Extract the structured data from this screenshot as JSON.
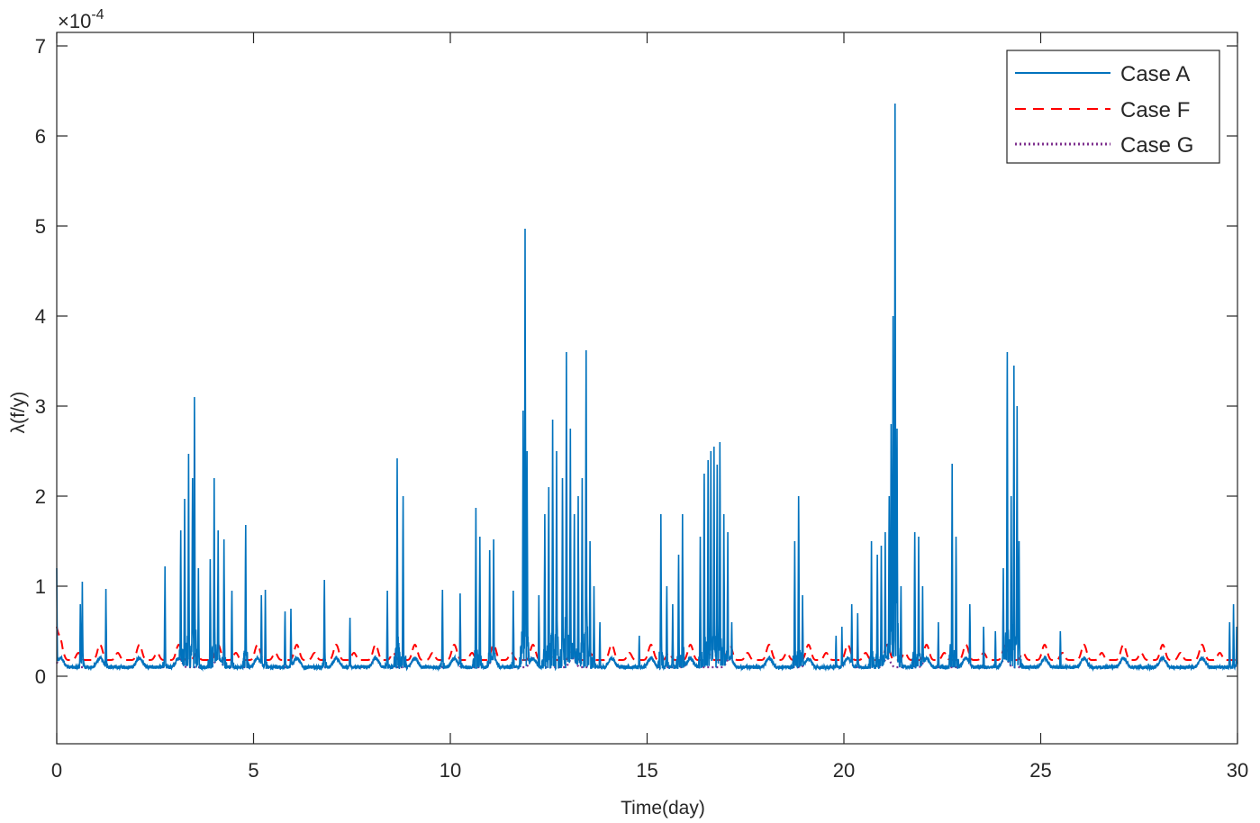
{
  "chart_data": {
    "type": "line",
    "title": "",
    "xlabel": "Time(day)",
    "ylabel": "λ(f/y)",
    "y_exponent": {
      "base": "×10",
      "power": "-4"
    },
    "xlim": [
      0,
      30
    ],
    "ylim": [
      -0.75,
      7.15
    ],
    "xticks": [
      0,
      5,
      10,
      15,
      20,
      25,
      30
    ],
    "xtick_labels": [
      "0",
      "5",
      "10",
      "15",
      "20",
      "25",
      "30"
    ],
    "yticks": [
      0,
      1,
      2,
      3,
      4,
      5,
      6,
      7
    ],
    "ytick_labels": [
      "0",
      "1",
      "2",
      "3",
      "4",
      "5",
      "6",
      "7"
    ],
    "grid": false,
    "legend": {
      "placement": "top-right",
      "entries": [
        "Case A",
        "Case F",
        "Case G"
      ]
    },
    "series": [
      {
        "name": "Case A",
        "color": "#0072BD",
        "style": "solid",
        "baseline": 0.15,
        "peaks": [
          [
            0.0,
            1.2
          ],
          [
            0.6,
            0.8
          ],
          [
            0.65,
            1.05
          ],
          [
            1.25,
            0.97
          ],
          [
            2.75,
            1.22
          ],
          [
            3.15,
            1.62
          ],
          [
            3.25,
            1.97
          ],
          [
            3.35,
            2.47
          ],
          [
            3.45,
            2.2
          ],
          [
            3.5,
            3.1
          ],
          [
            3.6,
            1.2
          ],
          [
            3.9,
            1.3
          ],
          [
            4.0,
            2.2
          ],
          [
            4.1,
            1.62
          ],
          [
            4.25,
            1.52
          ],
          [
            4.45,
            0.95
          ],
          [
            4.8,
            1.68
          ],
          [
            5.2,
            0.9
          ],
          [
            5.3,
            0.96
          ],
          [
            5.8,
            0.72
          ],
          [
            5.95,
            0.75
          ],
          [
            6.8,
            1.07
          ],
          [
            7.45,
            0.65
          ],
          [
            8.4,
            0.95
          ],
          [
            8.65,
            2.42
          ],
          [
            8.8,
            2.0
          ],
          [
            9.8,
            0.96
          ],
          [
            10.25,
            0.92
          ],
          [
            10.65,
            1.87
          ],
          [
            10.75,
            1.55
          ],
          [
            11.0,
            1.4
          ],
          [
            11.1,
            1.52
          ],
          [
            11.6,
            0.95
          ],
          [
            11.85,
            2.95
          ],
          [
            11.9,
            4.97
          ],
          [
            11.95,
            2.5
          ],
          [
            12.25,
            0.9
          ],
          [
            12.4,
            1.8
          ],
          [
            12.5,
            2.1
          ],
          [
            12.6,
            2.85
          ],
          [
            12.7,
            2.5
          ],
          [
            12.85,
            2.2
          ],
          [
            12.95,
            3.6
          ],
          [
            13.05,
            2.75
          ],
          [
            13.15,
            1.8
          ],
          [
            13.25,
            2.0
          ],
          [
            13.35,
            2.2
          ],
          [
            13.45,
            3.62
          ],
          [
            13.55,
            1.5
          ],
          [
            13.65,
            1.0
          ],
          [
            13.8,
            0.6
          ],
          [
            14.8,
            0.45
          ],
          [
            15.35,
            1.8
          ],
          [
            15.5,
            1.0
          ],
          [
            15.65,
            0.8
          ],
          [
            15.8,
            1.35
          ],
          [
            15.9,
            1.8
          ],
          [
            16.35,
            1.55
          ],
          [
            16.45,
            2.25
          ],
          [
            16.55,
            2.4
          ],
          [
            16.62,
            2.5
          ],
          [
            16.7,
            2.55
          ],
          [
            16.78,
            2.35
          ],
          [
            16.85,
            2.6
          ],
          [
            16.95,
            1.8
          ],
          [
            17.05,
            1.6
          ],
          [
            17.15,
            0.6
          ],
          [
            18.75,
            1.5
          ],
          [
            18.85,
            2.0
          ],
          [
            18.95,
            0.9
          ],
          [
            19.8,
            0.45
          ],
          [
            19.95,
            0.55
          ],
          [
            20.2,
            0.8
          ],
          [
            20.35,
            0.7
          ],
          [
            20.7,
            1.5
          ],
          [
            20.85,
            1.35
          ],
          [
            20.95,
            1.45
          ],
          [
            21.05,
            1.6
          ],
          [
            21.15,
            2.0
          ],
          [
            21.2,
            2.8
          ],
          [
            21.25,
            4.0
          ],
          [
            21.3,
            6.36
          ],
          [
            21.35,
            2.75
          ],
          [
            21.45,
            1.0
          ],
          [
            21.8,
            1.6
          ],
          [
            21.9,
            1.55
          ],
          [
            22.0,
            1.0
          ],
          [
            22.4,
            0.6
          ],
          [
            22.75,
            2.36
          ],
          [
            22.85,
            1.55
          ],
          [
            23.2,
            0.8
          ],
          [
            23.55,
            0.55
          ],
          [
            23.85,
            0.5
          ],
          [
            24.05,
            1.2
          ],
          [
            24.15,
            3.6
          ],
          [
            24.25,
            2.0
          ],
          [
            24.32,
            3.45
          ],
          [
            24.4,
            3.0
          ],
          [
            24.45,
            1.5
          ],
          [
            25.5,
            0.5
          ],
          [
            29.8,
            0.6
          ],
          [
            29.9,
            0.8
          ],
          [
            29.98,
            0.55
          ]
        ]
      },
      {
        "name": "Case F",
        "color": "#FF0000",
        "style": "dashed",
        "baseline": 0.18,
        "daily_peak": 0.35,
        "initial": 0.55
      },
      {
        "name": "Case G",
        "color": "#7E2F8E",
        "style": "dotted",
        "baseline": 0.1,
        "daily_peak": 0.2
      }
    ]
  }
}
